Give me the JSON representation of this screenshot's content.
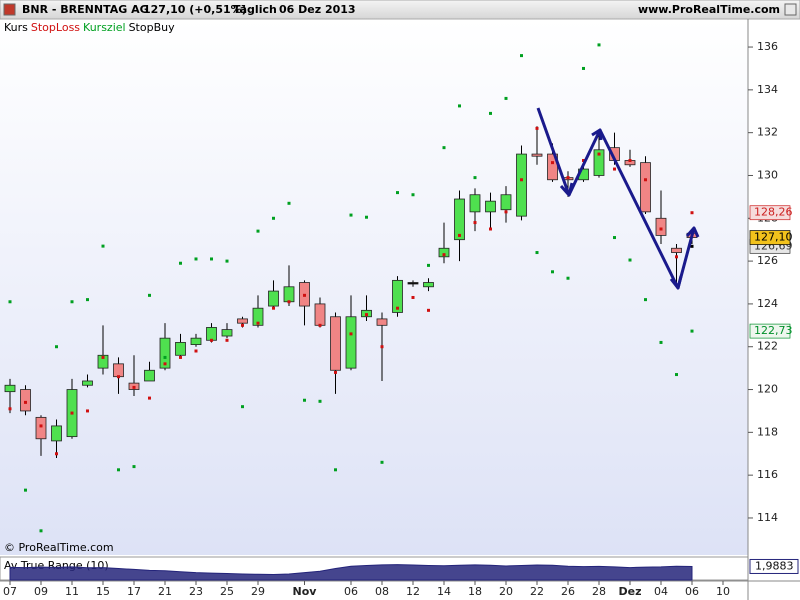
{
  "chart_data": {
    "type": "candlestick",
    "title": "BNR - BRENNTAG AG",
    "price_text": "127,10 (+0,51%)",
    "period": "Täglich",
    "date": "06 Dez 2013",
    "source": "www.ProRealTime.com",
    "copyright": "© ProRealTime.com",
    "ohlc_name": "Kurs",
    "categories": [
      "07",
      null,
      "09",
      null,
      "11",
      null,
      "15",
      null,
      "17",
      null,
      "21",
      null,
      "23",
      null,
      "25",
      null,
      "29",
      null,
      null,
      "Nov",
      null,
      null,
      "06",
      null,
      "08",
      null,
      "12",
      null,
      "14",
      null,
      "18",
      null,
      "20",
      null,
      "22",
      null,
      "26",
      null,
      "28",
      null,
      "Dez",
      null,
      "04",
      null,
      "06",
      null,
      "10"
    ],
    "open": [
      119.9,
      120.0,
      118.7,
      117.6,
      117.8,
      120.2,
      121.0,
      121.2,
      120.3,
      120.4,
      121.0,
      121.6,
      122.1,
      122.3,
      122.5,
      123.3,
      123.0,
      123.9,
      124.1,
      125.0,
      124.0,
      123.4,
      121.0,
      123.4,
      123.3,
      123.6,
      125.0,
      124.8,
      126.2,
      127.0,
      128.3,
      128.3,
      128.4,
      128.1,
      131.0,
      131.0,
      129.9,
      129.8,
      130.0,
      131.3,
      130.7,
      130.6,
      128.0,
      126.6,
      127.3,
      null,
      null
    ],
    "high": [
      120.5,
      120.2,
      118.8,
      118.6,
      120.5,
      120.7,
      123.0,
      121.5,
      121.6,
      121.3,
      123.1,
      122.6,
      122.6,
      123.1,
      123.1,
      123.4,
      124.4,
      125.1,
      125.8,
      125.1,
      124.3,
      123.6,
      124.4,
      124.4,
      123.6,
      125.3,
      125.1,
      125.2,
      127.8,
      129.3,
      129.4,
      129.2,
      129.5,
      131.4,
      132.3,
      131.5,
      130.2,
      130.7,
      132.1,
      132.0,
      131.2,
      130.9,
      129.3,
      126.8,
      127.4,
      null,
      null
    ],
    "low": [
      118.9,
      118.8,
      116.9,
      116.8,
      117.7,
      120.1,
      120.7,
      119.8,
      119.7,
      120.4,
      120.9,
      121.5,
      122.0,
      122.2,
      122.4,
      122.9,
      122.9,
      123.8,
      123.9,
      123.0,
      122.9,
      119.8,
      120.9,
      123.2,
      120.4,
      123.4,
      124.8,
      124.6,
      125.9,
      126.0,
      127.4,
      127.5,
      127.8,
      127.9,
      130.5,
      129.7,
      129.0,
      129.7,
      129.9,
      130.5,
      130.4,
      128.2,
      126.8,
      124.8,
      126.8,
      null,
      null
    ],
    "close": [
      120.2,
      119.0,
      117.7,
      118.3,
      120.0,
      120.4,
      121.6,
      120.6,
      120.0,
      120.9,
      122.4,
      122.2,
      122.4,
      122.9,
      122.8,
      123.1,
      123.8,
      124.6,
      124.8,
      123.9,
      123.0,
      120.9,
      123.4,
      123.7,
      123.0,
      125.1,
      125.0,
      125.0,
      126.6,
      128.9,
      129.1,
      128.8,
      129.1,
      131.0,
      130.9,
      129.8,
      129.8,
      130.3,
      131.2,
      130.7,
      130.5,
      128.3,
      127.2,
      126.4,
      127.1,
      null,
      null
    ],
    "up_color": "#4fe04f",
    "down_color": "#f08585",
    "series": [
      {
        "name": "StopLoss",
        "color": "#d01010",
        "values": [
          119.1,
          119.4,
          118.3,
          117.0,
          118.9,
          119.0,
          121.5,
          120.6,
          120.1,
          119.6,
          121.2,
          121.5,
          121.8,
          122.3,
          122.3,
          123.0,
          123.1,
          123.8,
          124.1,
          124.4,
          123.0,
          120.8,
          122.6,
          123.5,
          122.0,
          123.8,
          124.3,
          123.7,
          126.3,
          127.2,
          127.8,
          127.5,
          128.3,
          129.8,
          132.2,
          130.6,
          129.9,
          130.7,
          131.0,
          130.3,
          130.7,
          129.8,
          127.5,
          126.2,
          128.26,
          null,
          null
        ]
      },
      {
        "name": "Kursziel",
        "color": "#00a020",
        "values": [
          124.1,
          115.3,
          113.4,
          122.0,
          124.1,
          124.2,
          126.7,
          116.25,
          116.4,
          124.4,
          121.5,
          125.9,
          126.1,
          126.1,
          126.0,
          119.2,
          127.4,
          128.0,
          128.7,
          119.5,
          119.45,
          116.25,
          128.15,
          128.05,
          116.6,
          129.2,
          129.1,
          125.8,
          131.3,
          133.25,
          129.9,
          132.9,
          133.6,
          135.6,
          126.4,
          125.5,
          125.2,
          135.0,
          136.1,
          127.1,
          126.05,
          124.2,
          122.2,
          120.7,
          122.73,
          null,
          null
        ]
      },
      {
        "name": "StopBuy",
        "color": "#000000",
        "values": [
          null,
          null,
          null,
          null,
          null,
          null,
          null,
          null,
          null,
          null,
          null,
          null,
          null,
          null,
          null,
          null,
          null,
          null,
          null,
          null,
          null,
          null,
          null,
          null,
          null,
          null,
          null,
          null,
          null,
          null,
          null,
          null,
          null,
          null,
          null,
          null,
          null,
          null,
          null,
          null,
          null,
          null,
          null,
          null,
          126.69,
          null,
          null
        ]
      }
    ],
    "price_labels": [
      {
        "value": 128.26,
        "label": "128,26",
        "color": "#cc2020",
        "fill": "#f6dcdc"
      },
      {
        "value": 126.69,
        "label": "126,69",
        "color": "#333333",
        "fill": "#e6e6e6"
      },
      {
        "value": 127.1,
        "label": "127,10",
        "color": "#000000",
        "fill": "#f2c21c"
      },
      {
        "value": 122.73,
        "label": "122,73",
        "color": "#00902a",
        "fill": "#eef6ee"
      }
    ],
    "ylim": [
      112.27,
      137.31
    ],
    "yticks": [
      114,
      116,
      118,
      120,
      122,
      124,
      126,
      128,
      130,
      132,
      134,
      136
    ],
    "grid": false,
    "atr": {
      "title": "Av True Range (10)",
      "color": "#24247a",
      "values": [
        1.95,
        1.94,
        1.96,
        1.95,
        1.97,
        1.93,
        1.94,
        1.9,
        1.86,
        1.82,
        1.8,
        1.76,
        1.72,
        1.7,
        1.68,
        1.66,
        1.65,
        1.64,
        1.66,
        1.72,
        1.78,
        1.9,
        2.0,
        2.03,
        2.06,
        2.07,
        2.05,
        2.03,
        2.02,
        2.04,
        2.06,
        2.04,
        2.01,
        2.03,
        2.05,
        2.04,
        2.0,
        1.98,
        1.99,
        1.97,
        1.94,
        1.96,
        1.97,
        2.0,
        1.9883,
        null,
        null
      ],
      "last_label": "1,9883",
      "ylim": [
        1.4,
        2.4
      ]
    }
  }
}
